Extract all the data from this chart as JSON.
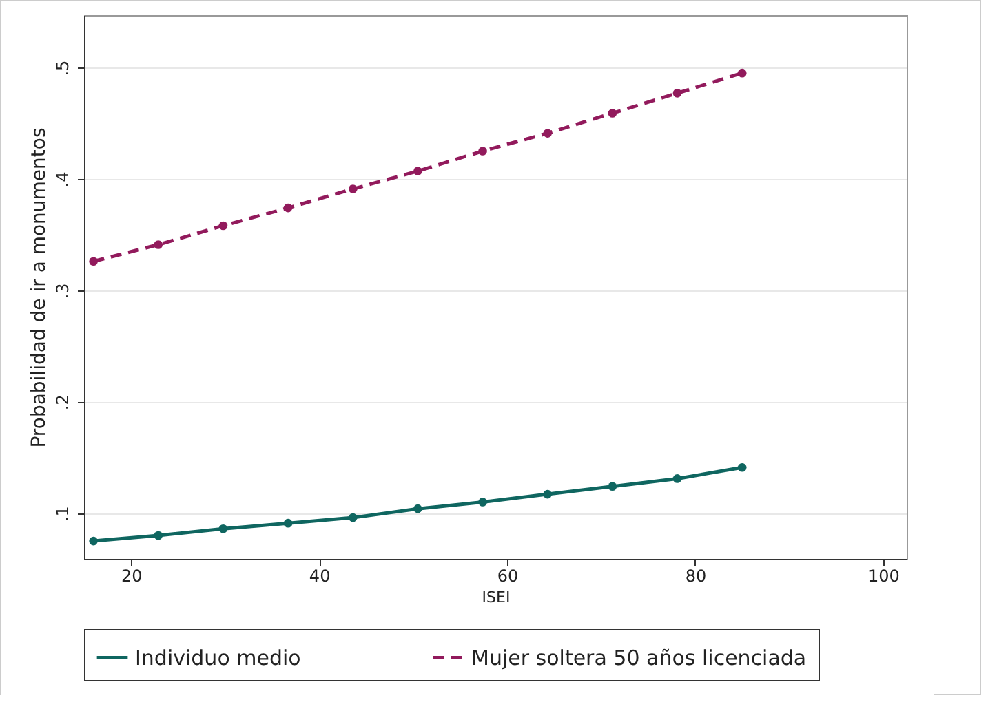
{
  "chart_data": {
    "type": "line",
    "xlabel": "ISEI",
    "ylabel": "Probabilidad de ir a monumentos",
    "x": [
      16,
      22.9,
      29.8,
      36.7,
      43.6,
      50.5,
      57.4,
      64.3,
      71.2,
      78.1,
      85
    ],
    "series": [
      {
        "name": "Individuo medio",
        "color": "#0f6660",
        "line_style": "solid",
        "values": [
          0.075,
          0.08,
          0.086,
          0.091,
          0.096,
          0.104,
          0.11,
          0.117,
          0.124,
          0.131,
          0.141
        ]
      },
      {
        "name": "Mujer soltera 50 años licenciada",
        "color": "#921a5c",
        "line_style": "dashed",
        "values": [
          0.326,
          0.341,
          0.358,
          0.374,
          0.391,
          0.407,
          0.425,
          0.441,
          0.459,
          0.477,
          0.495
        ]
      }
    ],
    "xlim": [
      15,
      102.5
    ],
    "xticks": [
      20,
      40,
      60,
      80,
      100
    ],
    "ylim": [
      0.059,
      0.547
    ],
    "yticks": [
      {
        "value": 0.1,
        "label": ".1"
      },
      {
        "value": 0.2,
        "label": ".2"
      },
      {
        "value": 0.3,
        "label": ".3"
      },
      {
        "value": 0.4,
        "label": ".4"
      },
      {
        "value": 0.5,
        "label": ".5"
      }
    ],
    "grid": "y",
    "legend": "bottom",
    "marker": "circle"
  }
}
